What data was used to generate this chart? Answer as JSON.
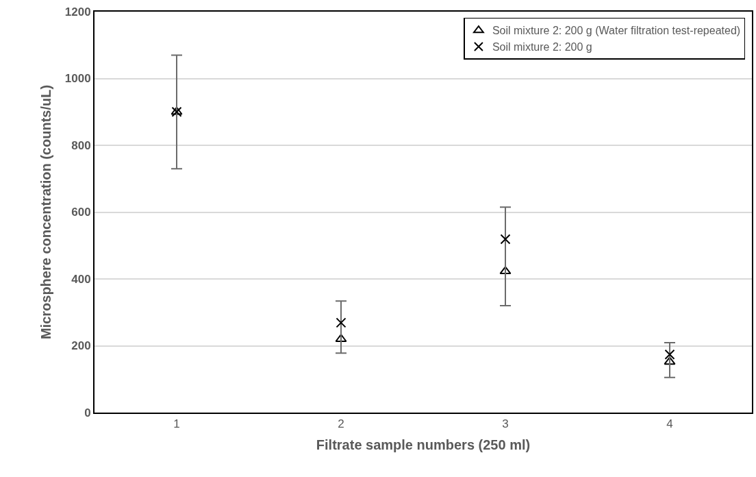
{
  "chart_data": {
    "type": "scatter",
    "xlabel": "Filtrate sample numbers (250 ml)",
    "ylabel": "Microsphere concentration (counts/uL)",
    "categories": [
      "1",
      "2",
      "3",
      "4"
    ],
    "series": [
      {
        "name": "Soil mixture 2: 200 g (Water filtration test-repeated)",
        "color": "#000000",
        "marker": "triangle",
        "values": [
          900,
          220,
          423,
          152
        ]
      },
      {
        "name": "Soil mixture 2: 200 g",
        "color": "#000000",
        "marker": "cross",
        "values": [
          900,
          269,
          519,
          174
        ],
        "errors": [
          [
            730,
            1070
          ],
          [
            178,
            334
          ],
          [
            320,
            615
          ],
          [
            105,
            209
          ]
        ]
      }
    ],
    "ylim": [
      0,
      1200
    ],
    "yticks": [
      0,
      200,
      400,
      600,
      800,
      1000,
      1200
    ],
    "grid": "y",
    "legend": "top right"
  }
}
